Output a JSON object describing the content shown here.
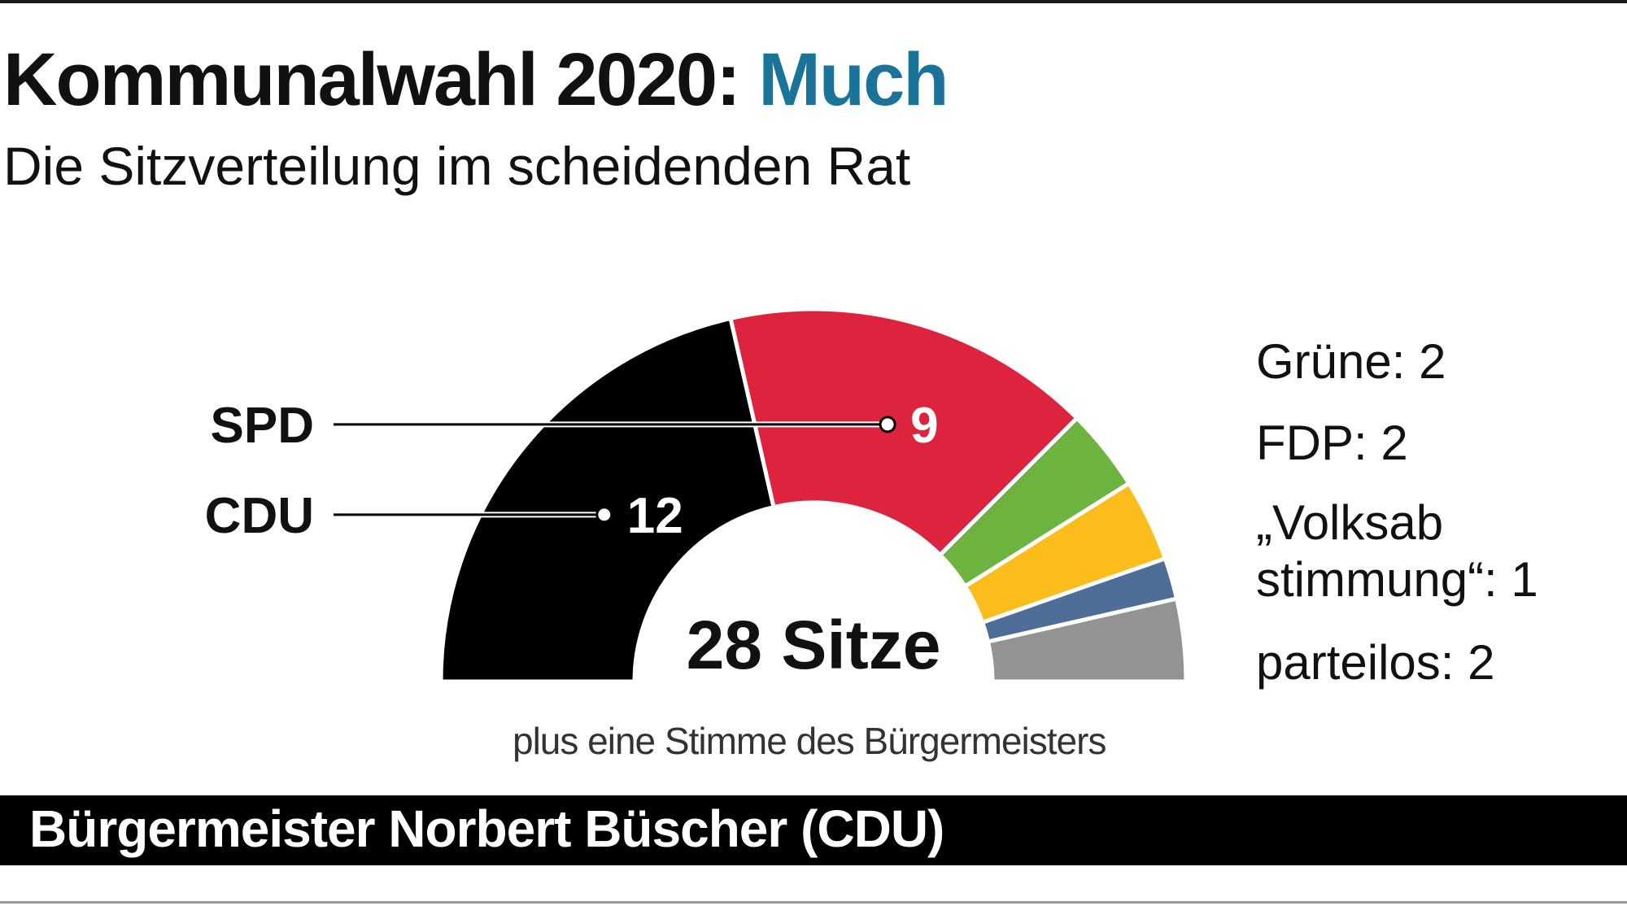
{
  "title": {
    "main": "Kommunalwahl 2020:",
    "accent": "Much"
  },
  "subtitle": "Die Sitzverteilung im scheidenden Rat",
  "chart_data": {
    "type": "pie",
    "variant": "half-donut",
    "total_label": "28 Sitze",
    "series": [
      {
        "name": "CDU",
        "value": 12,
        "color": "#000000",
        "label": "CDU",
        "value_label": "12"
      },
      {
        "name": "SPD",
        "value": 9,
        "color": "#dd233d",
        "label": "SPD",
        "value_label": "9"
      },
      {
        "name": "Grüne",
        "value": 2,
        "color": "#6db33f"
      },
      {
        "name": "FDP",
        "value": 2,
        "color": "#fbbd1b"
      },
      {
        "name": "„Volksabstimmung“",
        "value": 1,
        "color": "#4e6d97"
      },
      {
        "name": "parteilos",
        "value": 2,
        "color": "#939393"
      }
    ],
    "legend": [
      "Grüne: 2",
      "FDP: 2",
      "„Volksab stimmung“: 1",
      "parteilos: 2"
    ],
    "legend_position": "right"
  },
  "footnote": "plus eine Stimme des Bürgermeisters",
  "banner": "Bürgermeister Norbert Büscher (CDU)"
}
